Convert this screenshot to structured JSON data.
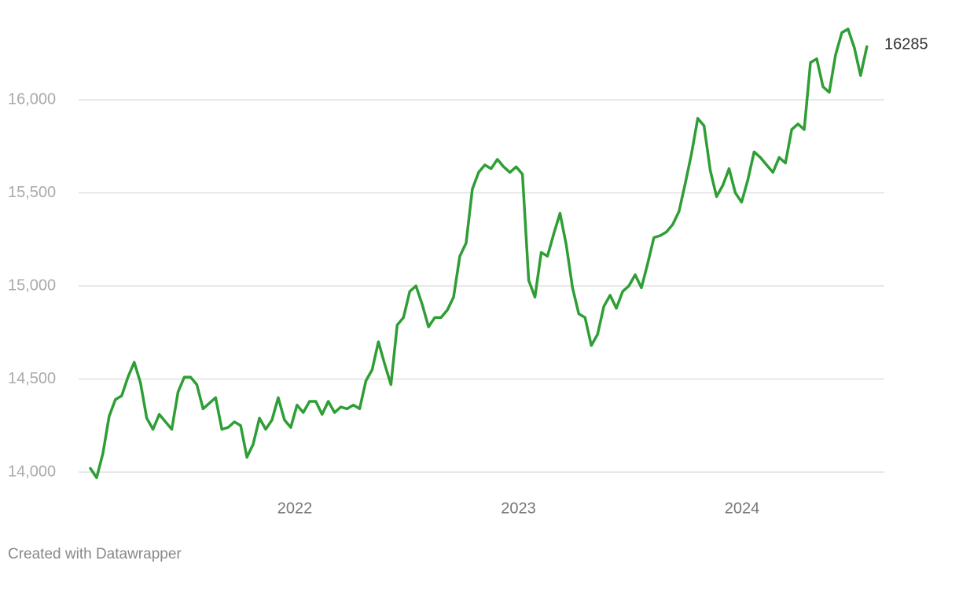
{
  "chart_data": {
    "type": "line",
    "x": [
      2021.086,
      2021.114,
      2021.142,
      2021.17,
      2021.198,
      2021.226,
      2021.254,
      2021.282,
      2021.31,
      2021.338,
      2021.366,
      2021.394,
      2021.422,
      2021.45,
      2021.478,
      2021.506,
      2021.534,
      2021.562,
      2021.59,
      2021.618,
      2021.646,
      2021.674,
      2021.702,
      2021.73,
      2021.758,
      2021.786,
      2021.814,
      2021.842,
      2021.87,
      2021.898,
      2021.926,
      2021.954,
      2021.982,
      2022.01,
      2022.038,
      2022.066,
      2022.094,
      2022.122,
      2022.15,
      2022.178,
      2022.206,
      2022.234,
      2022.262,
      2022.29,
      2022.318,
      2022.346,
      2022.374,
      2022.402,
      2022.43,
      2022.458,
      2022.486,
      2022.514,
      2022.542,
      2022.57,
      2022.598,
      2022.626,
      2022.654,
      2022.682,
      2022.71,
      2022.738,
      2022.766,
      2022.794,
      2022.822,
      2022.85,
      2022.878,
      2022.906,
      2022.934,
      2022.962,
      2022.99,
      2023.018,
      2023.046,
      2023.074,
      2023.102,
      2023.13,
      2023.158,
      2023.186,
      2023.214,
      2023.242,
      2023.27,
      2023.298,
      2023.326,
      2023.354,
      2023.382,
      2023.41,
      2023.438,
      2023.466,
      2023.494,
      2023.522,
      2023.55,
      2023.578,
      2023.606,
      2023.634,
      2023.662,
      2023.69,
      2023.718,
      2023.746,
      2023.774,
      2023.802,
      2023.83,
      2023.858,
      2023.886,
      2023.914,
      2023.942,
      2023.97,
      2023.998,
      2024.026,
      2024.054,
      2024.082,
      2024.11,
      2024.138,
      2024.166,
      2024.194,
      2024.222,
      2024.25,
      2024.278,
      2024.306,
      2024.334,
      2024.362,
      2024.39,
      2024.418,
      2024.446,
      2024.474,
      2024.502,
      2024.53,
      2024.558
    ],
    "series": [
      {
        "color": "#2e9e35",
        "values": [
          14020,
          13970,
          14100,
          14300,
          14390,
          14410,
          14510,
          14590,
          14480,
          14290,
          14230,
          14310,
          14270,
          14230,
          14430,
          14510,
          14510,
          14470,
          14340,
          14370,
          14400,
          14230,
          14240,
          14270,
          14250,
          14080,
          14150,
          14290,
          14230,
          14280,
          14400,
          14280,
          14240,
          14360,
          14320,
          14380,
          14380,
          14310,
          14380,
          14320,
          14350,
          14340,
          14360,
          14340,
          14490,
          14550,
          14700,
          14580,
          14470,
          14790,
          14830,
          14970,
          15000,
          14900,
          14780,
          14830,
          14830,
          14870,
          14940,
          15160,
          15230,
          15520,
          15610,
          15650,
          15630,
          15680,
          15640,
          15610,
          15640,
          15600,
          15030,
          14940,
          15180,
          15160,
          15280,
          15390,
          15220,
          14990,
          14850,
          14830,
          14680,
          14740,
          14890,
          14950,
          14880,
          14970,
          15000,
          15060,
          14990,
          15120,
          15260,
          15270,
          15290,
          15330,
          15400,
          15550,
          15710,
          15900,
          15860,
          15620,
          15480,
          15540,
          15630,
          15500,
          15450,
          15570,
          15720,
          15690,
          15650,
          15610,
          15690,
          15660,
          15840,
          15870,
          15840,
          16200,
          16220,
          16070,
          16040,
          16240,
          16360,
          16380,
          16280,
          16130,
          16285
        ]
      }
    ],
    "xlim": [
      2021.0,
      2024.6
    ],
    "xticks": [
      2022,
      2023,
      2024
    ],
    "ylim": [
      13850,
      16450
    ],
    "yticks": [
      {
        "value": 14000,
        "label": "14,000"
      },
      {
        "value": 14500,
        "label": "14,500"
      },
      {
        "value": 15000,
        "label": "15,000"
      },
      {
        "value": 15500,
        "label": "15,500"
      },
      {
        "value": 16000,
        "label": "16,000"
      }
    ],
    "grid": true,
    "credit": "Created with Datawrapper"
  }
}
